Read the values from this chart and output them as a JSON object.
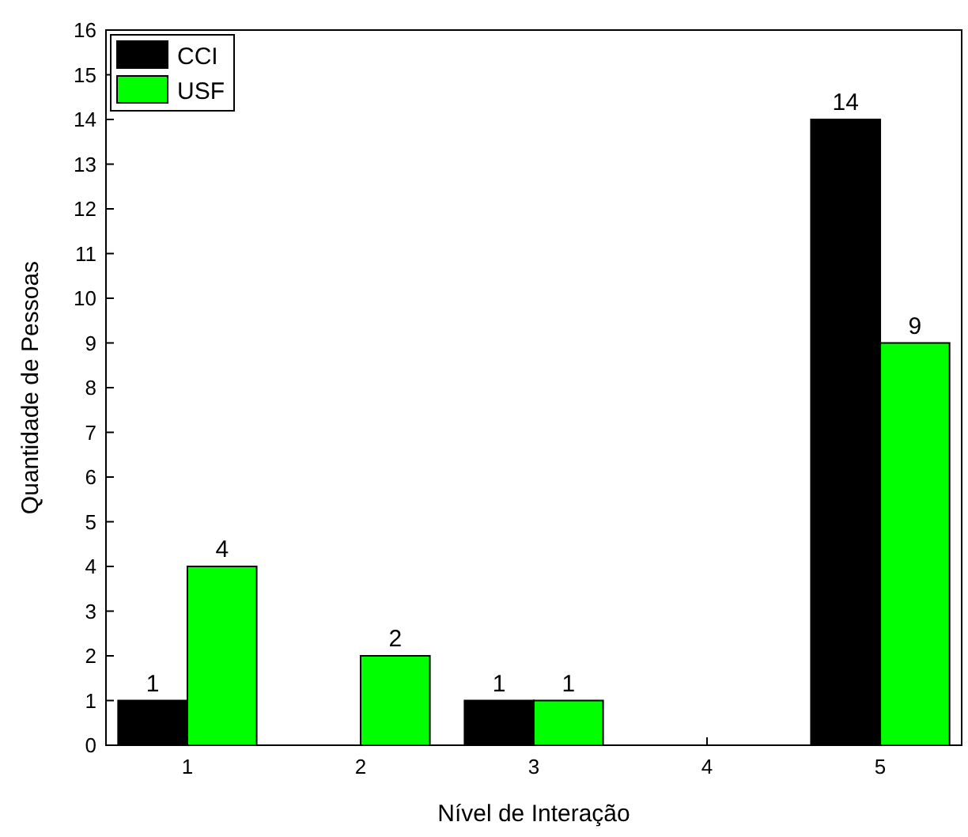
{
  "chart_data": {
    "type": "bar",
    "xlabel": "Nível de Interação",
    "ylabel": "Quantidade de Pessoas",
    "categories": [
      "1",
      "2",
      "3",
      "4",
      "5"
    ],
    "series": [
      {
        "name": "CCI",
        "color": "#000000",
        "values": [
          1,
          0,
          1,
          0,
          14
        ],
        "value_labels": [
          "1",
          null,
          "1",
          null,
          "14"
        ]
      },
      {
        "name": "USF",
        "color": "#00ff00",
        "values": [
          4,
          2,
          1,
          0,
          9
        ],
        "value_labels": [
          "4",
          "2",
          "1",
          null,
          "9"
        ]
      }
    ],
    "ylim": [
      0,
      16
    ],
    "yticks": [
      0,
      1,
      2,
      3,
      4,
      5,
      6,
      7,
      8,
      9,
      10,
      11,
      12,
      13,
      14,
      15,
      16
    ],
    "legend": "top left",
    "grid": false
  }
}
